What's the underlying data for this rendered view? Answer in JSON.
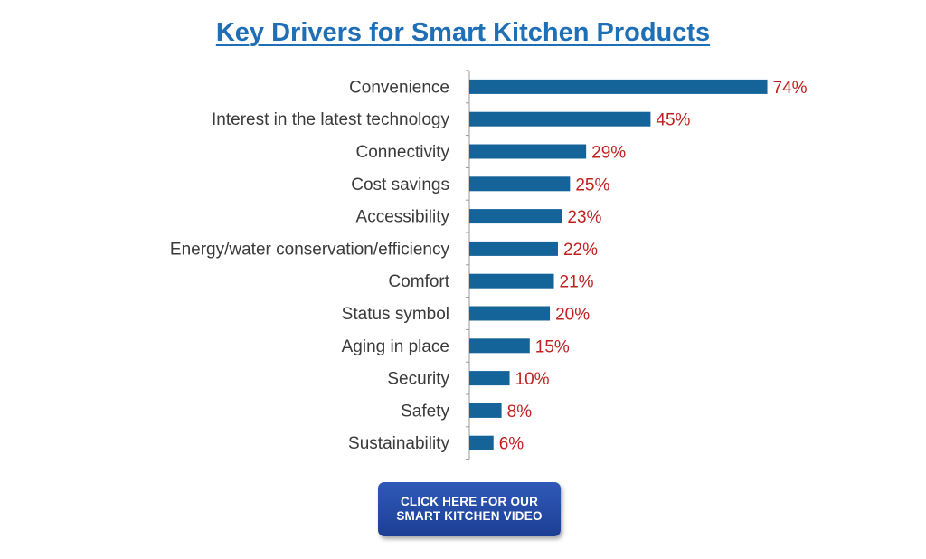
{
  "chart_data": {
    "type": "bar",
    "orientation": "horizontal",
    "title": "Key Drivers for Smart Kitchen Products",
    "categories": [
      "Convenience",
      "Interest in the latest technology",
      "Connectivity",
      "Cost savings",
      "Accessibility",
      "Energy/water conservation/efficiency",
      "Comfort",
      "Status symbol",
      "Aging in place",
      "Security",
      "Safety",
      "Sustainability"
    ],
    "values": [
      74,
      45,
      29,
      25,
      23,
      22,
      21,
      20,
      15,
      10,
      8,
      6
    ],
    "value_labels": [
      "74%",
      "45%",
      "29%",
      "25%",
      "23%",
      "22%",
      "21%",
      "20%",
      "15%",
      "10%",
      "8%",
      "6%"
    ],
    "xlim": [
      0,
      75
    ],
    "grid": false,
    "colors": {
      "bar": "#14649a",
      "value_label": "#c0211f",
      "title": "#1f6fb6"
    }
  },
  "cta": {
    "label": "CLICK HERE FOR OUR\nSMART KITCHEN VIDEO"
  }
}
